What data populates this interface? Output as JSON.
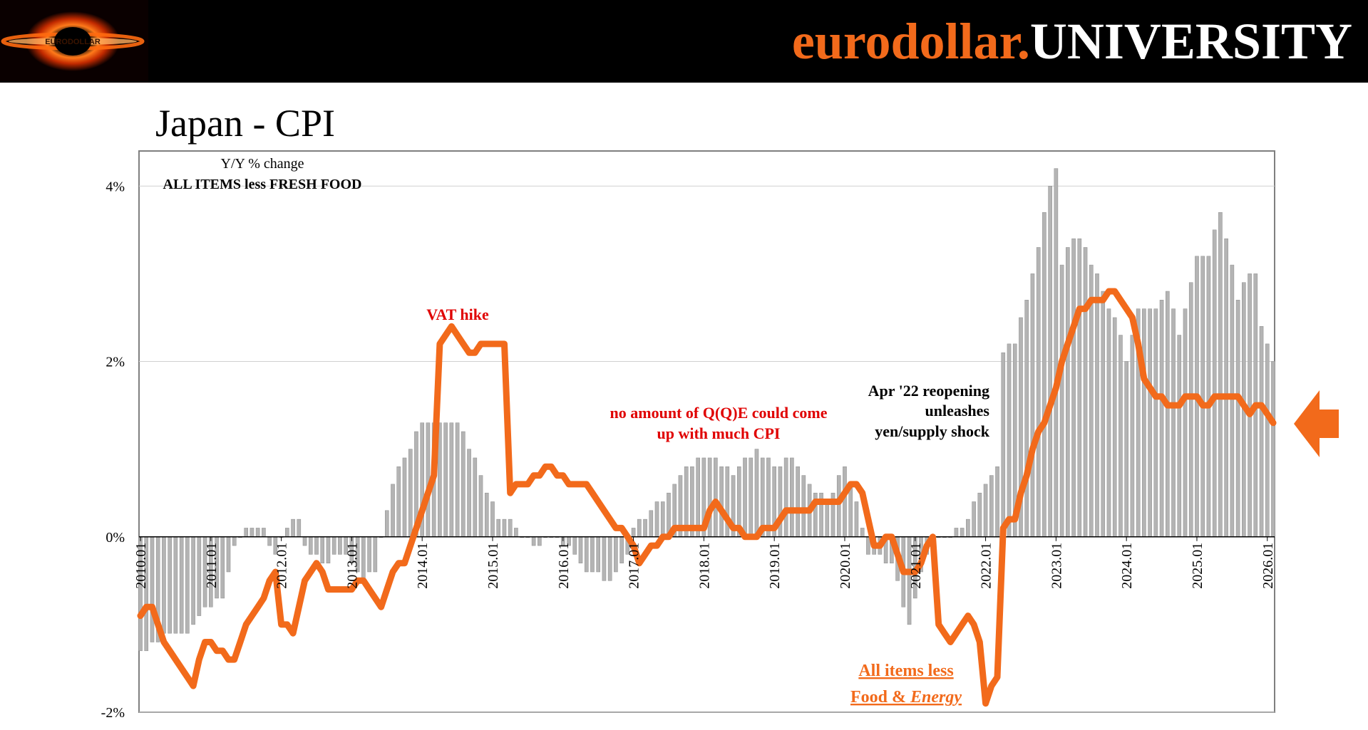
{
  "header": {
    "brand_part1": "eurodollar.",
    "brand_part2": "UNIVERSITY",
    "logo_text": "EURODOLLAR",
    "bg_color": "#000000",
    "brand_color": "#f26a1b"
  },
  "page_title": "Japan - CPI",
  "chart_data": {
    "type": "bar+line",
    "title": "Japan - CPI",
    "subtitle": "Y/Y % change",
    "subtitle2": "ALL ITEMS less FRESH FOOD",
    "ylim": [
      -2,
      4.4
    ],
    "yticks": [
      -2,
      0,
      2,
      4
    ],
    "ytick_labels": [
      "-2%",
      "0%",
      "2%",
      "4%"
    ],
    "grid": true,
    "x_start": "2010.01",
    "x_end": "2026.02",
    "xtick_labels": [
      "2010.01",
      "2011.01",
      "2012.01",
      "2013.01",
      "2014.01",
      "2015.01",
      "2016.01",
      "2017.01",
      "2018.01",
      "2019.01",
      "2020.01",
      "2021.01",
      "2022.01",
      "2023.01",
      "2024.01",
      "2025.01",
      "2026.01"
    ],
    "series": [
      {
        "name": "All items less Fresh Food",
        "kind": "bar",
        "color": "#b4b4b4",
        "knots": [
          [
            "2010.01",
            -1.3
          ],
          [
            "2010.06",
            -1.1
          ],
          [
            "2010.09",
            -1.1
          ],
          [
            "2010.12",
            -0.8
          ],
          [
            "2011.03",
            -0.7
          ],
          [
            "2011.05",
            -0.1
          ],
          [
            "2011.07",
            0.1
          ],
          [
            "2011.10",
            0.1
          ],
          [
            "2011.12",
            -0.2
          ],
          [
            "2012.02",
            0.1
          ],
          [
            "2012.04",
            0.2
          ],
          [
            "2012.05",
            -0.1
          ],
          [
            "2012.08",
            -0.3
          ],
          [
            "2012.12",
            -0.2
          ],
          [
            "2013.03",
            -0.5
          ],
          [
            "2013.05",
            -0.4
          ],
          [
            "2013.06",
            0.0
          ],
          [
            "2013.08",
            0.6
          ],
          [
            "2013.12",
            1.2
          ],
          [
            "2014.01",
            1.3
          ],
          [
            "2014.03",
            1.3
          ],
          [
            "2014.04",
            1.3
          ],
          [
            "2014.07",
            1.3
          ],
          [
            "2014.10",
            0.9
          ],
          [
            "2014.12",
            0.5
          ],
          [
            "2015.02",
            0.2
          ],
          [
            "2015.03",
            0.2
          ],
          [
            "2015.05",
            0.1
          ],
          [
            "2015.08",
            -0.1
          ],
          [
            "2015.11",
            0.0
          ],
          [
            "2016.02",
            -0.1
          ],
          [
            "2016.05",
            -0.4
          ],
          [
            "2016.09",
            -0.5
          ],
          [
            "2016.12",
            -0.2
          ],
          [
            "2017.01",
            0.1
          ],
          [
            "2017.04",
            0.3
          ],
          [
            "2017.07",
            0.5
          ],
          [
            "2017.10",
            0.8
          ],
          [
            "2018.01",
            0.9
          ],
          [
            "2018.03",
            0.9
          ],
          [
            "2018.06",
            0.7
          ],
          [
            "2018.10",
            1.0
          ],
          [
            "2019.01",
            0.8
          ],
          [
            "2019.04",
            0.9
          ],
          [
            "2019.07",
            0.6
          ],
          [
            "2019.10",
            0.4
          ],
          [
            "2020.01",
            0.8
          ],
          [
            "2020.03",
            0.4
          ],
          [
            "2020.05",
            -0.2
          ],
          [
            "2020.09",
            -0.3
          ],
          [
            "2020.12",
            -1.0
          ],
          [
            "2021.02",
            -0.4
          ],
          [
            "2021.04",
            -0.1
          ],
          [
            "2021.06",
            0.0
          ],
          [
            "2021.09",
            0.1
          ],
          [
            "2021.12",
            0.5
          ],
          [
            "2022.03",
            0.8
          ],
          [
            "2022.04",
            2.1
          ],
          [
            "2022.06",
            2.2
          ],
          [
            "2022.09",
            3.0
          ],
          [
            "2022.12",
            4.0
          ],
          [
            "2023.01",
            4.2
          ],
          [
            "2023.02",
            3.1
          ],
          [
            "2023.04",
            3.4
          ],
          [
            "2023.06",
            3.3
          ],
          [
            "2023.09",
            2.8
          ],
          [
            "2023.12",
            2.3
          ],
          [
            "2024.01",
            2.0
          ],
          [
            "2024.03",
            2.6
          ],
          [
            "2024.06",
            2.6
          ],
          [
            "2024.08",
            2.8
          ],
          [
            "2024.10",
            2.3
          ],
          [
            "2025.01",
            3.2
          ],
          [
            "2025.03",
            3.2
          ],
          [
            "2025.05",
            3.7
          ],
          [
            "2025.07",
            3.1
          ],
          [
            "2025.08",
            2.7
          ],
          [
            "2025.09",
            2.9
          ],
          [
            "2025.10",
            3.0
          ],
          [
            "2025.11",
            3.0
          ],
          [
            "2025.12",
            2.4
          ],
          [
            "2026.02",
            2.0
          ]
        ]
      },
      {
        "name": "All items less Food & Energy",
        "kind": "line",
        "color": "#f26a1b",
        "knots": [
          [
            "2010.01",
            -0.9
          ],
          [
            "2010.03",
            -0.8
          ],
          [
            "2010.05",
            -1.2
          ],
          [
            "2010.07",
            -1.4
          ],
          [
            "2010.10",
            -1.7
          ],
          [
            "2010.12",
            -1.2
          ],
          [
            "2011.02",
            -1.3
          ],
          [
            "2011.05",
            -1.4
          ],
          [
            "2011.07",
            -1.0
          ],
          [
            "2011.09",
            -0.8
          ],
          [
            "2011.12",
            -0.4
          ],
          [
            "2012.01",
            -1.0
          ],
          [
            "2012.03",
            -1.1
          ],
          [
            "2012.05",
            -0.5
          ],
          [
            "2012.07",
            -0.3
          ],
          [
            "2012.09",
            -0.6
          ],
          [
            "2012.12",
            -0.6
          ],
          [
            "2013.03",
            -0.5
          ],
          [
            "2013.06",
            -0.8
          ],
          [
            "2013.08",
            -0.4
          ],
          [
            "2013.10",
            -0.3
          ],
          [
            "2013.12",
            0.1
          ],
          [
            "2014.03",
            0.7
          ],
          [
            "2014.04",
            2.2
          ],
          [
            "2014.06",
            2.4
          ],
          [
            "2014.09",
            2.1
          ],
          [
            "2014.12",
            2.2
          ],
          [
            "2015.03",
            2.2
          ],
          [
            "2015.04",
            0.5
          ],
          [
            "2015.06",
            0.6
          ],
          [
            "2015.09",
            0.7
          ],
          [
            "2015.11",
            0.8
          ],
          [
            "2016.02",
            0.6
          ],
          [
            "2016.05",
            0.6
          ],
          [
            "2016.09",
            0.2
          ],
          [
            "2016.12",
            0.0
          ],
          [
            "2017.02",
            -0.3
          ],
          [
            "2017.06",
            0.0
          ],
          [
            "2017.09",
            0.1
          ],
          [
            "2018.01",
            0.1
          ],
          [
            "2018.03",
            0.4
          ],
          [
            "2018.06",
            0.1
          ],
          [
            "2018.09",
            0.0
          ],
          [
            "2018.12",
            0.1
          ],
          [
            "2019.01",
            0.1
          ],
          [
            "2019.03",
            0.3
          ],
          [
            "2019.06",
            0.3
          ],
          [
            "2019.10",
            0.4
          ],
          [
            "2019.12",
            0.4
          ],
          [
            "2020.02",
            0.6
          ],
          [
            "2020.04",
            0.5
          ],
          [
            "2020.06",
            -0.1
          ],
          [
            "2020.09",
            0.0
          ],
          [
            "2020.11",
            -0.4
          ],
          [
            "2021.01",
            -0.4
          ],
          [
            "2021.04",
            0.0
          ],
          [
            "2021.05",
            -1.0
          ],
          [
            "2021.07",
            -1.2
          ],
          [
            "2021.10",
            -0.9
          ],
          [
            "2021.12",
            -1.2
          ],
          [
            "2022.01",
            -1.9
          ],
          [
            "2022.03",
            -1.6
          ],
          [
            "2022.04",
            0.1
          ],
          [
            "2022.06",
            0.2
          ],
          [
            "2022.09",
            1.0
          ],
          [
            "2022.12",
            1.5
          ],
          [
            "2023.03",
            2.2
          ],
          [
            "2023.05",
            2.6
          ],
          [
            "2023.08",
            2.7
          ],
          [
            "2023.11",
            2.8
          ],
          [
            "2024.02",
            2.5
          ],
          [
            "2024.04",
            1.8
          ],
          [
            "2024.06",
            1.6
          ],
          [
            "2024.09",
            1.5
          ],
          [
            "2024.12",
            1.6
          ],
          [
            "2025.03",
            1.5
          ],
          [
            "2025.05",
            1.6
          ],
          [
            "2025.08",
            1.6
          ],
          [
            "2025.10",
            1.4
          ],
          [
            "2025.12",
            1.5
          ],
          [
            "2026.02",
            1.3
          ]
        ]
      }
    ],
    "annotations": [
      {
        "text": "VAT hike",
        "color": "#e00000"
      },
      {
        "lines": [
          "no amount of Q(Q)E could come",
          "up with much CPI"
        ],
        "color": "#e00000"
      },
      {
        "lines": [
          "Apr '22 reopening",
          "unleashes",
          "yen/supply shock"
        ],
        "color": "#000000"
      }
    ],
    "legend_label_line1": "All items less",
    "legend_label_line2_a": "Food & ",
    "legend_label_line2_b": "Energy",
    "legend_color": "#f26a1b",
    "arrow_color": "#f26a1b"
  }
}
